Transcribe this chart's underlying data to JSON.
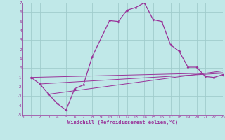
{
  "xlabel": "Windchill (Refroidissement éolien,°C)",
  "bg_color": "#c0e8e8",
  "grid_color": "#a0cccc",
  "line_color": "#993399",
  "xlim": [
    0,
    23
  ],
  "ylim": [
    -5,
    7
  ],
  "xticks": [
    0,
    1,
    2,
    3,
    4,
    5,
    6,
    7,
    8,
    9,
    10,
    11,
    12,
    13,
    14,
    15,
    16,
    17,
    18,
    19,
    20,
    21,
    22,
    23
  ],
  "yticks": [
    -5,
    -4,
    -3,
    -2,
    -1,
    0,
    1,
    2,
    3,
    4,
    5,
    6,
    7
  ],
  "curve1_x": [
    1,
    2,
    3,
    4,
    5,
    6,
    7,
    8,
    10,
    11,
    12,
    13,
    14,
    15,
    16,
    17,
    18,
    19,
    20,
    21,
    22,
    23
  ],
  "curve1_y": [
    -1.0,
    -1.7,
    -2.8,
    -3.8,
    -4.5,
    -2.2,
    -1.8,
    1.2,
    5.1,
    5.0,
    6.2,
    6.5,
    7.0,
    5.2,
    5.0,
    2.5,
    1.8,
    0.1,
    0.1,
    -0.9,
    -1.0,
    -0.7
  ],
  "line2_x": [
    1,
    23
  ],
  "line2_y": [
    -1.0,
    -0.5
  ],
  "line3_x": [
    2,
    23
  ],
  "line3_y": [
    -1.7,
    -0.55
  ],
  "line4_x": [
    3,
    23
  ],
  "line4_y": [
    -2.8,
    -0.3
  ]
}
